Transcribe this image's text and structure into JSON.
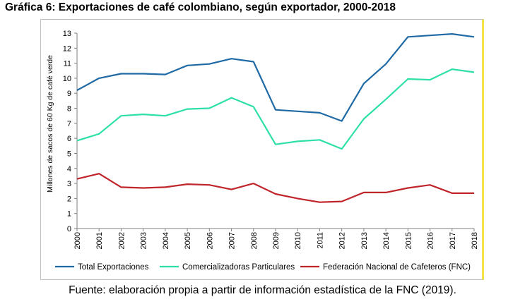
{
  "title": "Gráfica 6: Exportaciones de café colombiano, según exportador, 2000-2018",
  "source": "Fuente: elaboración propia a partir de información estadística de la FNC (2019).",
  "chart_data": {
    "type": "line",
    "title": "",
    "xlabel": "",
    "ylabel": "Millones de sacos de 60 Kg de café verde",
    "ylim": [
      0,
      13
    ],
    "yticks": [
      "0",
      "1",
      "2",
      "3",
      "4",
      "5",
      "6",
      "7",
      "8",
      "9",
      "10",
      "11",
      "12",
      "13"
    ],
    "x": [
      "2000",
      "2001",
      "2002",
      "2003",
      "2004",
      "2005",
      "2006",
      "2007",
      "2008",
      "2009",
      "2010",
      "2011",
      "2012",
      "2013",
      "2014",
      "2015",
      "2016",
      "2017",
      "2018"
    ],
    "grid": false,
    "legend_position": "bottom",
    "series": [
      {
        "name": "Total Exportaciones",
        "color": "#1f6aa5",
        "values": [
          9.2,
          10.0,
          10.3,
          10.3,
          10.25,
          10.85,
          10.95,
          11.3,
          11.1,
          7.9,
          7.8,
          7.7,
          7.15,
          9.65,
          10.95,
          12.75,
          12.85,
          12.95,
          12.75
        ]
      },
      {
        "name": "Comercializadoras Particulares",
        "color": "#2ee0a8",
        "values": [
          5.85,
          6.3,
          7.5,
          7.6,
          7.5,
          7.95,
          8.0,
          8.7,
          8.1,
          5.6,
          5.8,
          5.9,
          5.3,
          7.3,
          8.6,
          9.95,
          9.9,
          10.6,
          10.4
        ]
      },
      {
        "name": "Federación Nacional de Cafeteros (FNC)",
        "color": "#c0252b",
        "values": [
          3.3,
          3.65,
          2.75,
          2.7,
          2.75,
          2.95,
          2.9,
          2.6,
          3.0,
          2.3,
          2.0,
          1.75,
          1.8,
          2.4,
          2.4,
          2.7,
          2.9,
          2.35,
          2.35
        ]
      }
    ]
  }
}
